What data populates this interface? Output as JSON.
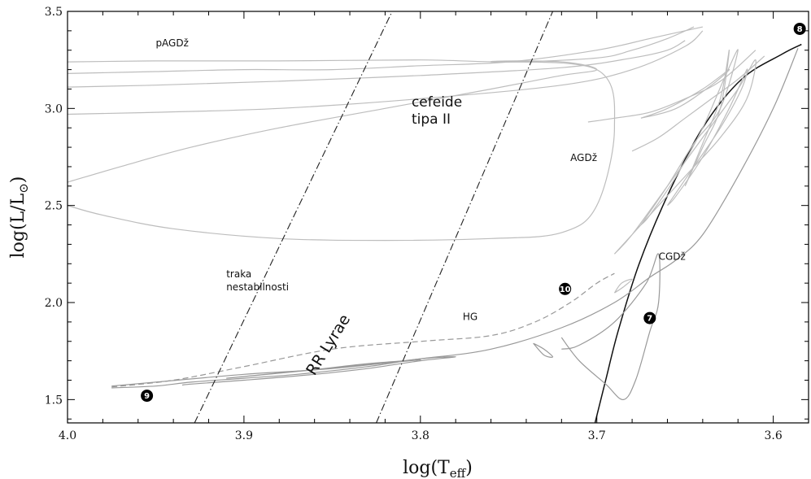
{
  "chart_data": {
    "type": "line",
    "title": "",
    "xlabel": "log(T",
    "xlabel_sub": "eff",
    "xlabel_close": ")",
    "ylabel": "log(L/L",
    "ylabel_sub": "⊙",
    "ylabel_close": ")",
    "xlim": [
      4.0,
      3.58
    ],
    "ylim": [
      1.38,
      3.5
    ],
    "x_inverted": true,
    "x_ticks": [
      {
        "value": 4.0,
        "label": "4.0"
      },
      {
        "value": 3.9,
        "label": "3.9"
      },
      {
        "value": 3.8,
        "label": "3.8"
      },
      {
        "value": 3.7,
        "label": "3.7"
      },
      {
        "value": 3.6,
        "label": "3.6"
      }
    ],
    "y_ticks": [
      {
        "value": 1.5,
        "label": "1.5"
      },
      {
        "value": 2.0,
        "label": "2.0"
      },
      {
        "value": 2.5,
        "label": "2.5"
      },
      {
        "value": 3.0,
        "label": "3.0"
      },
      {
        "value": 3.5,
        "label": "3.5"
      }
    ],
    "grid": false,
    "colors": {
      "track_gray": "#bdbdbd",
      "track_mid": "#999999",
      "track_dark": "#111111",
      "strip": "#222222"
    },
    "instability_strip": [
      {
        "name": "blue-edge",
        "points": [
          [
            3.928,
            1.38
          ],
          [
            3.816,
            3.5
          ]
        ]
      },
      {
        "name": "red-edge",
        "points": [
          [
            3.825,
            1.38
          ],
          [
            3.725,
            3.5
          ]
        ]
      }
    ],
    "series": [
      {
        "id": "rgb",
        "style": "dark",
        "points": [
          [
            3.701,
            1.38
          ],
          [
            3.695,
            1.6
          ],
          [
            3.688,
            1.85
          ],
          [
            3.676,
            2.2
          ],
          [
            3.66,
            2.55
          ],
          [
            3.64,
            2.9
          ],
          [
            3.618,
            3.15
          ],
          [
            3.595,
            3.28
          ],
          [
            3.584,
            3.33
          ]
        ]
      },
      {
        "id": "hg-upper",
        "style": "mid",
        "points": [
          [
            3.975,
            1.57
          ],
          [
            3.95,
            1.59
          ],
          [
            3.9,
            1.63
          ],
          [
            3.85,
            1.66
          ],
          [
            3.8,
            1.71
          ],
          [
            3.76,
            1.76
          ],
          [
            3.72,
            1.87
          ],
          [
            3.69,
            2.0
          ],
          [
            3.67,
            2.13
          ],
          [
            3.655,
            2.22
          ],
          [
            3.64,
            2.35
          ],
          [
            3.62,
            2.65
          ],
          [
            3.6,
            3.0
          ],
          [
            3.586,
            3.31
          ]
        ]
      },
      {
        "id": "hg-dashed",
        "style": "dash",
        "points": [
          [
            3.975,
            1.565
          ],
          [
            3.94,
            1.6
          ],
          [
            3.9,
            1.67
          ],
          [
            3.85,
            1.76
          ],
          [
            3.8,
            1.8
          ],
          [
            3.76,
            1.83
          ],
          [
            3.735,
            1.9
          ],
          [
            3.715,
            2.0
          ],
          [
            3.7,
            2.1
          ],
          [
            3.69,
            2.15
          ]
        ]
      },
      {
        "id": "rr-loop",
        "style": "mid",
        "points": [
          [
            3.975,
            1.56
          ],
          [
            3.95,
            1.57
          ],
          [
            3.93,
            1.59
          ],
          [
            3.9,
            1.61
          ],
          [
            3.87,
            1.63
          ],
          [
            3.83,
            1.67
          ],
          [
            3.8,
            1.71
          ],
          [
            3.78,
            1.72
          ],
          [
            3.8,
            1.7
          ],
          [
            3.83,
            1.66
          ],
          [
            3.86,
            1.63
          ],
          [
            3.9,
            1.6
          ],
          [
            3.93,
            1.58
          ],
          [
            3.935,
            1.575
          ]
        ]
      },
      {
        "id": "rr-loop-2",
        "style": "mid",
        "points": [
          [
            3.91,
            1.61
          ],
          [
            3.86,
            1.655
          ],
          [
            3.83,
            1.685
          ],
          [
            3.8,
            1.705
          ],
          [
            3.83,
            1.68
          ],
          [
            3.87,
            1.645
          ],
          [
            3.91,
            1.61
          ]
        ]
      },
      {
        "id": "loop-07",
        "style": "mid",
        "points": [
          [
            3.72,
            1.82
          ],
          [
            3.71,
            1.7
          ],
          [
            3.695,
            1.58
          ],
          [
            3.685,
            1.5
          ],
          [
            3.678,
            1.6
          ],
          [
            3.67,
            1.85
          ],
          [
            3.665,
            2.0
          ],
          [
            3.665,
            2.25
          ],
          [
            3.672,
            2.1
          ],
          [
            3.69,
            1.9
          ],
          [
            3.71,
            1.78
          ],
          [
            3.72,
            1.76
          ]
        ]
      },
      {
        "id": "small-loop",
        "style": "mid",
        "points": [
          [
            3.736,
            1.79
          ],
          [
            3.73,
            1.73
          ],
          [
            3.725,
            1.72
          ],
          [
            3.73,
            1.76
          ],
          [
            3.736,
            1.79
          ]
        ]
      },
      {
        "id": "loop-mid",
        "style": "light",
        "points": [
          [
            3.69,
            2.05
          ],
          [
            3.686,
            2.1
          ],
          [
            3.68,
            2.12
          ],
          [
            3.685,
            2.08
          ],
          [
            3.69,
            2.05
          ]
        ]
      },
      {
        "id": "cepheid-1",
        "style": "light",
        "points": [
          [
            4.0,
            2.62
          ],
          [
            3.97,
            2.7
          ],
          [
            3.93,
            2.8
          ],
          [
            3.88,
            2.9
          ],
          [
            3.82,
            3.0
          ],
          [
            3.76,
            3.1
          ],
          [
            3.72,
            3.17
          ],
          [
            3.7,
            3.2
          ],
          [
            3.72,
            3.24
          ],
          [
            3.76,
            3.24
          ],
          [
            3.7,
            3.2
          ],
          [
            3.69,
            2.9
          ],
          [
            3.7,
            2.5
          ],
          [
            3.72,
            2.36
          ],
          [
            3.76,
            2.33
          ],
          [
            3.82,
            2.32
          ],
          [
            3.88,
            2.33
          ],
          [
            3.94,
            2.38
          ],
          [
            3.98,
            2.45
          ],
          [
            4.0,
            2.5
          ]
        ]
      },
      {
        "id": "cepheid-2",
        "style": "light",
        "points": [
          [
            4.0,
            2.97
          ],
          [
            3.95,
            2.98
          ],
          [
            3.88,
            3.0
          ],
          [
            3.8,
            3.05
          ],
          [
            3.72,
            3.12
          ],
          [
            3.68,
            3.2
          ],
          [
            3.65,
            3.32
          ],
          [
            3.64,
            3.4
          ]
        ]
      },
      {
        "id": "cepheid-3",
        "style": "light",
        "points": [
          [
            4.0,
            3.11
          ],
          [
            3.95,
            3.12
          ],
          [
            3.88,
            3.14
          ],
          [
            3.8,
            3.17
          ],
          [
            3.72,
            3.21
          ],
          [
            3.68,
            3.26
          ],
          [
            3.66,
            3.3
          ],
          [
            3.65,
            3.35
          ]
        ]
      },
      {
        "id": "cepheid-4",
        "style": "light",
        "points": [
          [
            4.0,
            3.18
          ],
          [
            3.95,
            3.19
          ],
          [
            3.9,
            3.2
          ],
          [
            3.85,
            3.2
          ],
          [
            3.8,
            3.22
          ],
          [
            3.75,
            3.24
          ],
          [
            3.7,
            3.3
          ],
          [
            3.67,
            3.36
          ],
          [
            3.64,
            3.42
          ]
        ]
      },
      {
        "id": "cepheid-5",
        "style": "light",
        "points": [
          [
            4.0,
            3.24
          ],
          [
            3.95,
            3.245
          ],
          [
            3.88,
            3.245
          ],
          [
            3.8,
            3.25
          ],
          [
            3.75,
            3.24
          ],
          [
            3.7,
            3.26
          ],
          [
            3.68,
            3.3
          ],
          [
            3.66,
            3.36
          ],
          [
            3.645,
            3.42
          ]
        ]
      },
      {
        "id": "agb-1",
        "style": "light",
        "points": [
          [
            3.69,
            2.25
          ],
          [
            3.67,
            2.45
          ],
          [
            3.65,
            2.65
          ],
          [
            3.63,
            2.85
          ],
          [
            3.615,
            3.05
          ],
          [
            3.61,
            3.25
          ],
          [
            3.62,
            3.1
          ],
          [
            3.64,
            2.85
          ],
          [
            3.66,
            2.6
          ],
          [
            3.68,
            2.35
          ],
          [
            3.69,
            2.25
          ]
        ]
      },
      {
        "id": "agb-2",
        "style": "light",
        "points": [
          [
            3.66,
            2.5
          ],
          [
            3.645,
            2.7
          ],
          [
            3.63,
            2.9
          ],
          [
            3.618,
            3.1
          ],
          [
            3.615,
            3.2
          ],
          [
            3.625,
            3.0
          ],
          [
            3.64,
            2.75
          ],
          [
            3.655,
            2.55
          ],
          [
            3.66,
            2.5
          ]
        ]
      },
      {
        "id": "agb-3",
        "style": "light",
        "points": [
          [
            3.675,
            2.4
          ],
          [
            3.66,
            2.6
          ],
          [
            3.645,
            2.82
          ],
          [
            3.63,
            3.0
          ],
          [
            3.62,
            3.3
          ],
          [
            3.628,
            3.15
          ],
          [
            3.64,
            2.9
          ],
          [
            3.655,
            2.65
          ],
          [
            3.67,
            2.45
          ],
          [
            3.675,
            2.4
          ]
        ]
      },
      {
        "id": "agb-4",
        "style": "light",
        "points": [
          [
            3.675,
            2.95
          ],
          [
            3.66,
            3.0
          ],
          [
            3.64,
            3.1
          ],
          [
            3.625,
            3.2
          ],
          [
            3.635,
            3.12
          ],
          [
            3.655,
            3.0
          ],
          [
            3.675,
            2.95
          ]
        ]
      },
      {
        "id": "agb-5",
        "style": "light",
        "points": [
          [
            3.705,
            2.93
          ],
          [
            3.69,
            2.95
          ],
          [
            3.67,
            2.98
          ],
          [
            3.65,
            3.05
          ],
          [
            3.63,
            3.14
          ],
          [
            3.61,
            3.3
          ]
        ]
      },
      {
        "id": "agb-6",
        "style": "light",
        "points": [
          [
            3.65,
            2.6
          ],
          [
            3.64,
            2.8
          ],
          [
            3.63,
            3.0
          ],
          [
            3.625,
            3.3
          ],
          [
            3.63,
            3.05
          ],
          [
            3.64,
            2.82
          ],
          [
            3.65,
            2.6
          ]
        ]
      },
      {
        "id": "agb-7",
        "style": "light",
        "points": [
          [
            3.68,
            2.78
          ],
          [
            3.665,
            2.85
          ],
          [
            3.65,
            2.95
          ],
          [
            3.635,
            3.05
          ],
          [
            3.62,
            3.15
          ],
          [
            3.605,
            3.27
          ]
        ]
      }
    ],
    "annotations": [
      {
        "id": "pagb",
        "text": "pAGDž",
        "x": 3.95,
        "y": 3.32,
        "style": "ann"
      },
      {
        "id": "cepheids",
        "lines": [
          "cefeide",
          "tipa II"
        ],
        "x": 3.805,
        "y": 3.01,
        "style": "ann-big"
      },
      {
        "id": "agb",
        "text": "AGDž",
        "x": 3.715,
        "y": 2.73,
        "style": "ann"
      },
      {
        "id": "rgb-label",
        "text": "CGDž",
        "x": 3.665,
        "y": 2.22,
        "style": "ann"
      },
      {
        "id": "strip",
        "lines": [
          "traka",
          "nestabilnosti"
        ],
        "x": 3.91,
        "y": 2.13,
        "style": "ann"
      },
      {
        "id": "hg",
        "text": "HG",
        "x": 3.776,
        "y": 1.91,
        "style": "ann"
      },
      {
        "id": "rr-lyrae",
        "text": "RR Lyrae",
        "x": 3.86,
        "y": 1.62,
        "rotate": -58,
        "style": "ann-rr"
      }
    ],
    "markers": [
      {
        "label": "8",
        "x": 3.585,
        "y": 3.41
      },
      {
        "label": "10",
        "x": 3.718,
        "y": 2.07
      },
      {
        "label": "7",
        "x": 3.67,
        "y": 1.92
      },
      {
        "label": "9",
        "x": 3.955,
        "y": 1.52
      }
    ]
  }
}
